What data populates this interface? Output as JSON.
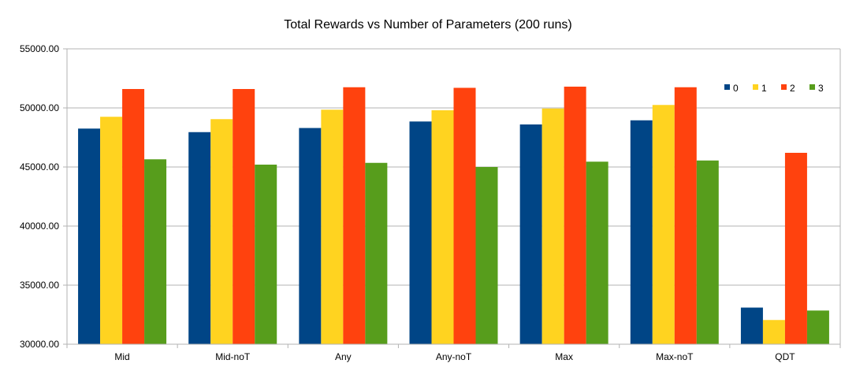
{
  "chart_data": {
    "type": "bar",
    "title": "Total Rewards vs Number of Parameters (200 runs)",
    "xlabel": "",
    "ylabel": "",
    "categories": [
      "Mid",
      "Mid-noT",
      "Any",
      "Any-noT",
      "Max",
      "Max-noT",
      "QDT"
    ],
    "yticks": [
      "30000.00",
      "35000.00",
      "40000.00",
      "45000.00",
      "50000.00",
      "55000.00"
    ],
    "ylim": [
      30000,
      55000
    ],
    "grid": true,
    "legend_position": "top-right",
    "series": [
      {
        "name": "0",
        "color": "#004586",
        "values": [
          48250,
          47950,
          48300,
          48850,
          48600,
          48950,
          33100
        ]
      },
      {
        "name": "1",
        "color": "#ffd320",
        "values": [
          49250,
          49050,
          49850,
          49800,
          49950,
          50250,
          32050
        ]
      },
      {
        "name": "2",
        "color": "#ff420e",
        "values": [
          51600,
          51600,
          51750,
          51700,
          51800,
          51750,
          46200
        ]
      },
      {
        "name": "3",
        "color": "#579d1c",
        "values": [
          45650,
          45200,
          45350,
          45000,
          45450,
          45550,
          32850
        ]
      }
    ]
  }
}
